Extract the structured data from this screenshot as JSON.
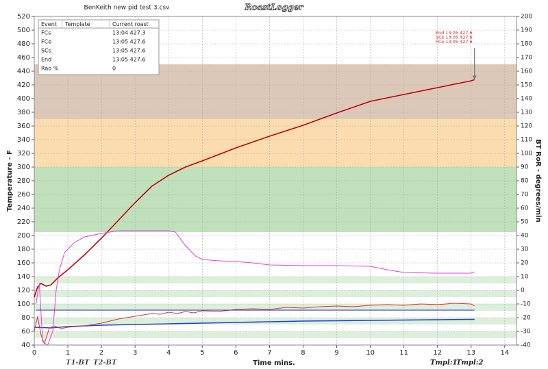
{
  "chart_data": {
    "type": "line",
    "title": "BenKeith new pid test 3.csv",
    "logo": "RoastLogger",
    "x_label": "Time mins.",
    "y_label": "Temperature - F",
    "y2_label": "BT RoR - degrees/min",
    "xlim": [
      0,
      14.35
    ],
    "xticks": [
      0,
      1,
      2,
      3,
      4,
      5,
      6,
      7,
      8,
      9,
      10,
      11,
      12,
      13,
      14
    ],
    "ylim": [
      40,
      520
    ],
    "yticks": [
      40,
      60,
      80,
      100,
      120,
      140,
      160,
      180,
      200,
      220,
      240,
      260,
      280,
      300,
      320,
      340,
      360,
      380,
      400,
      420,
      440,
      460,
      480,
      500,
      520
    ],
    "y2lim": [
      -40,
      200
    ],
    "y2ticks": [
      -40,
      -30,
      -20,
      -10,
      0,
      10,
      20,
      30,
      40,
      50,
      60,
      70,
      80,
      90,
      100,
      110,
      120,
      130,
      140,
      150,
      160,
      170,
      180,
      190,
      200
    ],
    "grid": true,
    "bands": [
      {
        "from": 370,
        "to": 450,
        "color": "#dcc8b8"
      },
      {
        "from": 300,
        "to": 370,
        "color": "#fbdcae"
      },
      {
        "from": 205,
        "to": 300,
        "color": "#bfe0bb"
      },
      {
        "from": 130,
        "to": 140,
        "color": "#dcefda"
      },
      {
        "from": 110,
        "to": 120,
        "color": "#dcefda"
      },
      {
        "from": 90,
        "to": 100,
        "color": "#dcefda"
      },
      {
        "from": 70,
        "to": 80,
        "color": "#dcefda"
      },
      {
        "from": 50,
        "to": 60,
        "color": "#dcefda"
      }
    ],
    "series": [
      {
        "name": "T1-BT",
        "color": "#c00000",
        "x": [
          0,
          0.1,
          0.2,
          0.35,
          0.5,
          0.7,
          1,
          1.5,
          2,
          2.5,
          3,
          3.5,
          4,
          4.5,
          5,
          6,
          7,
          8,
          9,
          10,
          11,
          12,
          13,
          13.1
        ],
        "values": [
          110,
          125,
          130,
          126,
          128,
          138,
          150,
          172,
          196,
          222,
          248,
          272,
          288,
          300,
          309,
          328,
          345,
          361,
          379,
          396,
          406,
          416,
          426,
          427.6
        ]
      },
      {
        "name": "T2-BT",
        "color": "#1f3fd6",
        "x": [
          0,
          0.5,
          1,
          1.5,
          2,
          3,
          4,
          5,
          6,
          7,
          8,
          9,
          10,
          11,
          12,
          13,
          13.1
        ],
        "values": [
          66,
          65,
          67,
          68,
          69,
          70,
          71,
          72,
          73,
          74,
          75,
          75.5,
          76,
          76.5,
          77,
          77.5,
          77.5
        ]
      },
      {
        "color": "#e040e0",
        "axis": "y2",
        "x": [
          0.05,
          0.15,
          0.25,
          0.4,
          0.55,
          0.65,
          0.75,
          0.9,
          1.2,
          1.5,
          2,
          2.5,
          3,
          3.5,
          4,
          4.2,
          4.5,
          4.8,
          5,
          5.5,
          6,
          6.5,
          7,
          8,
          9,
          10,
          10.5,
          11,
          12,
          13,
          13.1
        ],
        "values": [
          -10,
          5,
          -37.5,
          -40,
          -30,
          0,
          15,
          27.5,
          35,
          39,
          41.5,
          43.5,
          43.5,
          43.5,
          43.5,
          42.5,
          32.5,
          25,
          22.5,
          21.5,
          21,
          20,
          18.5,
          18,
          18,
          17.5,
          15,
          13,
          12.5,
          12.5,
          13.5
        ]
      },
      {
        "color": "#e03030",
        "x": [
          0,
          0.1,
          0.2,
          0.3,
          0.45,
          0.6,
          0.8,
          1,
          1.25,
          1.5,
          1.75,
          2,
          2.25,
          2.5,
          2.75,
          3,
          3.25,
          3.5,
          3.75,
          4,
          4.25,
          4.5,
          4.75,
          5,
          5.5,
          6,
          6.5,
          7,
          7.5,
          8,
          8.5,
          9,
          9.5,
          10,
          10.5,
          11,
          11.5,
          12,
          12.5,
          13,
          13.1
        ],
        "values": [
          60,
          82,
          55,
          42,
          65,
          68,
          64,
          66,
          67,
          68,
          70,
          72,
          75,
          78,
          80,
          82,
          84,
          86,
          85,
          88,
          86,
          89,
          87,
          90,
          89,
          92,
          93,
          92,
          95,
          94,
          96,
          97,
          96,
          98,
          99,
          98,
          100,
          99,
          101,
          100,
          97
        ]
      },
      {
        "color": "#3030d0",
        "x": [
          0.05,
          13.1
        ],
        "values": [
          91,
          91
        ]
      }
    ],
    "event_table": {
      "columns": [
        "Event",
        "Template",
        "Current roast"
      ],
      "rows": [
        {
          "event": "FCs",
          "current": "13:04 427.3"
        },
        {
          "event": "FCe",
          "current": "13:05 427.6"
        },
        {
          "event": "SCs",
          "current": "13:05 427.6"
        },
        {
          "event": "End",
          "current": "13:05 427.6"
        },
        {
          "event": "Rao %",
          "current": "0"
        }
      ]
    },
    "annotations": [
      "End 13:05 427.6",
      "SCs 13:05 427.6",
      "FCe 13:05 427.6"
    ],
    "templates": [
      {
        "name": "Tmpl:1",
        "color": "#ff8fb0"
      },
      {
        "name": "Tmpl:2",
        "color": "#30e0f0"
      }
    ]
  }
}
